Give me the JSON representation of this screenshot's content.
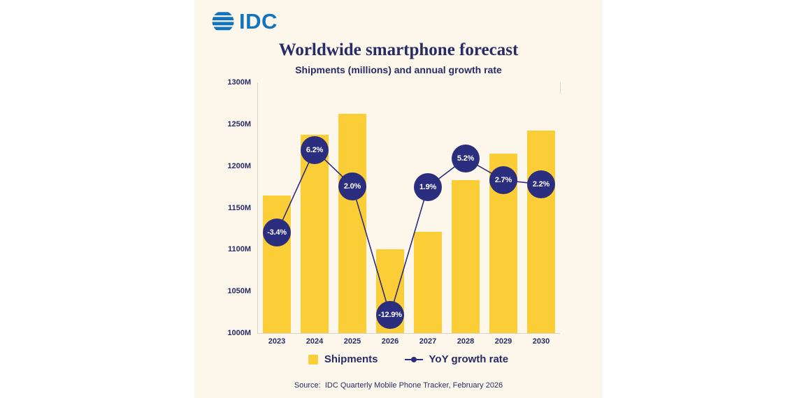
{
  "page": {
    "background": "#FFFFFF",
    "panel_background": "#FDF6EA",
    "text_color": "#272C67"
  },
  "logo": {
    "text": "IDC",
    "color": "#1274BD",
    "icon": "globe-stripes-icon"
  },
  "header": {
    "title": "Worldwide smartphone forecast",
    "subtitle": "Shipments (millions) and annual growth rate"
  },
  "chart_data": {
    "type": "bar",
    "categories": [
      "2023",
      "2024",
      "2025",
      "2026",
      "2027",
      "2028",
      "2029",
      "2030"
    ],
    "series": [
      {
        "name": "Shipments",
        "type": "bar",
        "unit": "M",
        "values": [
          1165,
          1237,
          1262,
          1100,
          1121,
          1183,
          1215,
          1242
        ]
      },
      {
        "name": "YoY growth rate",
        "type": "line",
        "unit": "%",
        "values": [
          -3.4,
          6.2,
          2.0,
          -12.9,
          1.9,
          5.2,
          2.7,
          2.2
        ],
        "labels": [
          "-3.4%",
          "6.2%",
          "2.0%",
          "-12.9%",
          "1.9%",
          "5.2%",
          "2.7%",
          "2.2%"
        ]
      }
    ],
    "y_axis": {
      "min": 1000,
      "max": 1300,
      "ticks": [
        "1300M",
        "1250M",
        "1200M",
        "1150M",
        "1100M",
        "1050M",
        "1000M"
      ],
      "tick_values": [
        1300,
        1250,
        1200,
        1150,
        1100,
        1050,
        1000
      ]
    },
    "growth_axis": {
      "min": -15,
      "max": 14
    },
    "grid": "off",
    "legend_position": "bottom",
    "colors": {
      "bar": "#FBCD37",
      "line": "#2B2D7F",
      "marker": "#2B2D7F",
      "marker_text": "#FFFFFF",
      "axis": "#D8D3C9"
    }
  },
  "legend": [
    {
      "label": "Shipments",
      "swatch": "bar"
    },
    {
      "label": "YoY growth rate",
      "swatch": "line"
    }
  ],
  "source": "Source:  IDC Quarterly Mobile Phone Tracker, February 2026"
}
